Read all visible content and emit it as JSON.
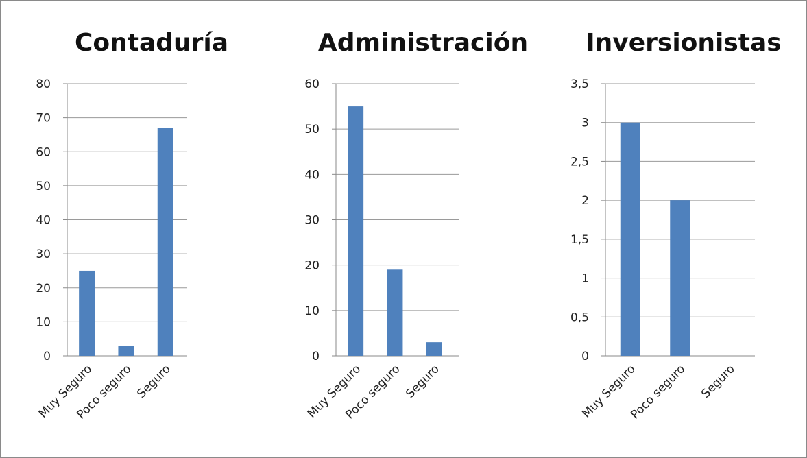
{
  "chart_data": [
    {
      "type": "bar",
      "title": "Contaduría",
      "categories": [
        "Muy Seguro",
        "Poco seguro",
        "Seguro"
      ],
      "values": [
        25,
        3,
        67
      ],
      "ylim": [
        0,
        80
      ],
      "yticks": [
        "0",
        "10",
        "20",
        "30",
        "40",
        "50",
        "60",
        "70",
        "80"
      ],
      "grid": true,
      "legend": "none",
      "bar_color": "#4f81bd"
    },
    {
      "type": "bar",
      "title": "Administración",
      "categories": [
        "Muy Seguro",
        "Poco seguro",
        "Seguro"
      ],
      "values": [
        55,
        19,
        3
      ],
      "ylim": [
        0,
        60
      ],
      "yticks": [
        "0",
        "10",
        "20",
        "30",
        "40",
        "50",
        "60"
      ],
      "grid": true,
      "legend": "none",
      "bar_color": "#4f81bd"
    },
    {
      "type": "bar",
      "title": "Inversionistas",
      "categories": [
        "Muy Seguro",
        "Poco seguro",
        "Seguro"
      ],
      "values": [
        3,
        2,
        0
      ],
      "ylim": [
        0,
        3.5
      ],
      "yticks": [
        "0",
        "0,5",
        "1",
        "1,5",
        "2",
        "2,5",
        "3",
        "3,5"
      ],
      "grid": true,
      "legend": "none",
      "bar_color": "#4f81bd"
    }
  ]
}
